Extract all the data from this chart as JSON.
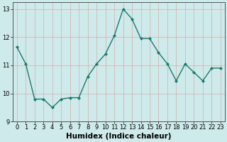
{
  "x": [
    0,
    1,
    2,
    3,
    4,
    5,
    6,
    7,
    8,
    9,
    10,
    11,
    12,
    13,
    14,
    15,
    16,
    17,
    18,
    19,
    20,
    21,
    22,
    23
  ],
  "y": [
    11.65,
    11.05,
    9.8,
    9.8,
    9.5,
    9.8,
    9.85,
    9.85,
    10.6,
    11.05,
    11.4,
    12.05,
    13.0,
    12.65,
    11.95,
    11.95,
    11.45,
    11.05,
    10.45,
    11.05,
    10.75,
    10.45,
    10.9,
    10.9
  ],
  "line_color": "#1a7a6e",
  "marker": "D",
  "markersize": 2,
  "linewidth": 1.0,
  "bg_color": "#ceeaea",
  "grid_color": "#b8d8d8",
  "xlabel": "Humidex (Indice chaleur)",
  "xlim": [
    -0.5,
    23.5
  ],
  "ylim": [
    9.0,
    13.25
  ],
  "yticks": [
    9,
    10,
    11,
    12,
    13
  ],
  "xticks": [
    0,
    1,
    2,
    3,
    4,
    5,
    6,
    7,
    8,
    9,
    10,
    11,
    12,
    13,
    14,
    15,
    16,
    17,
    18,
    19,
    20,
    21,
    22,
    23
  ],
  "tick_label_fontsize": 6,
  "xlabel_fontsize": 7.5
}
